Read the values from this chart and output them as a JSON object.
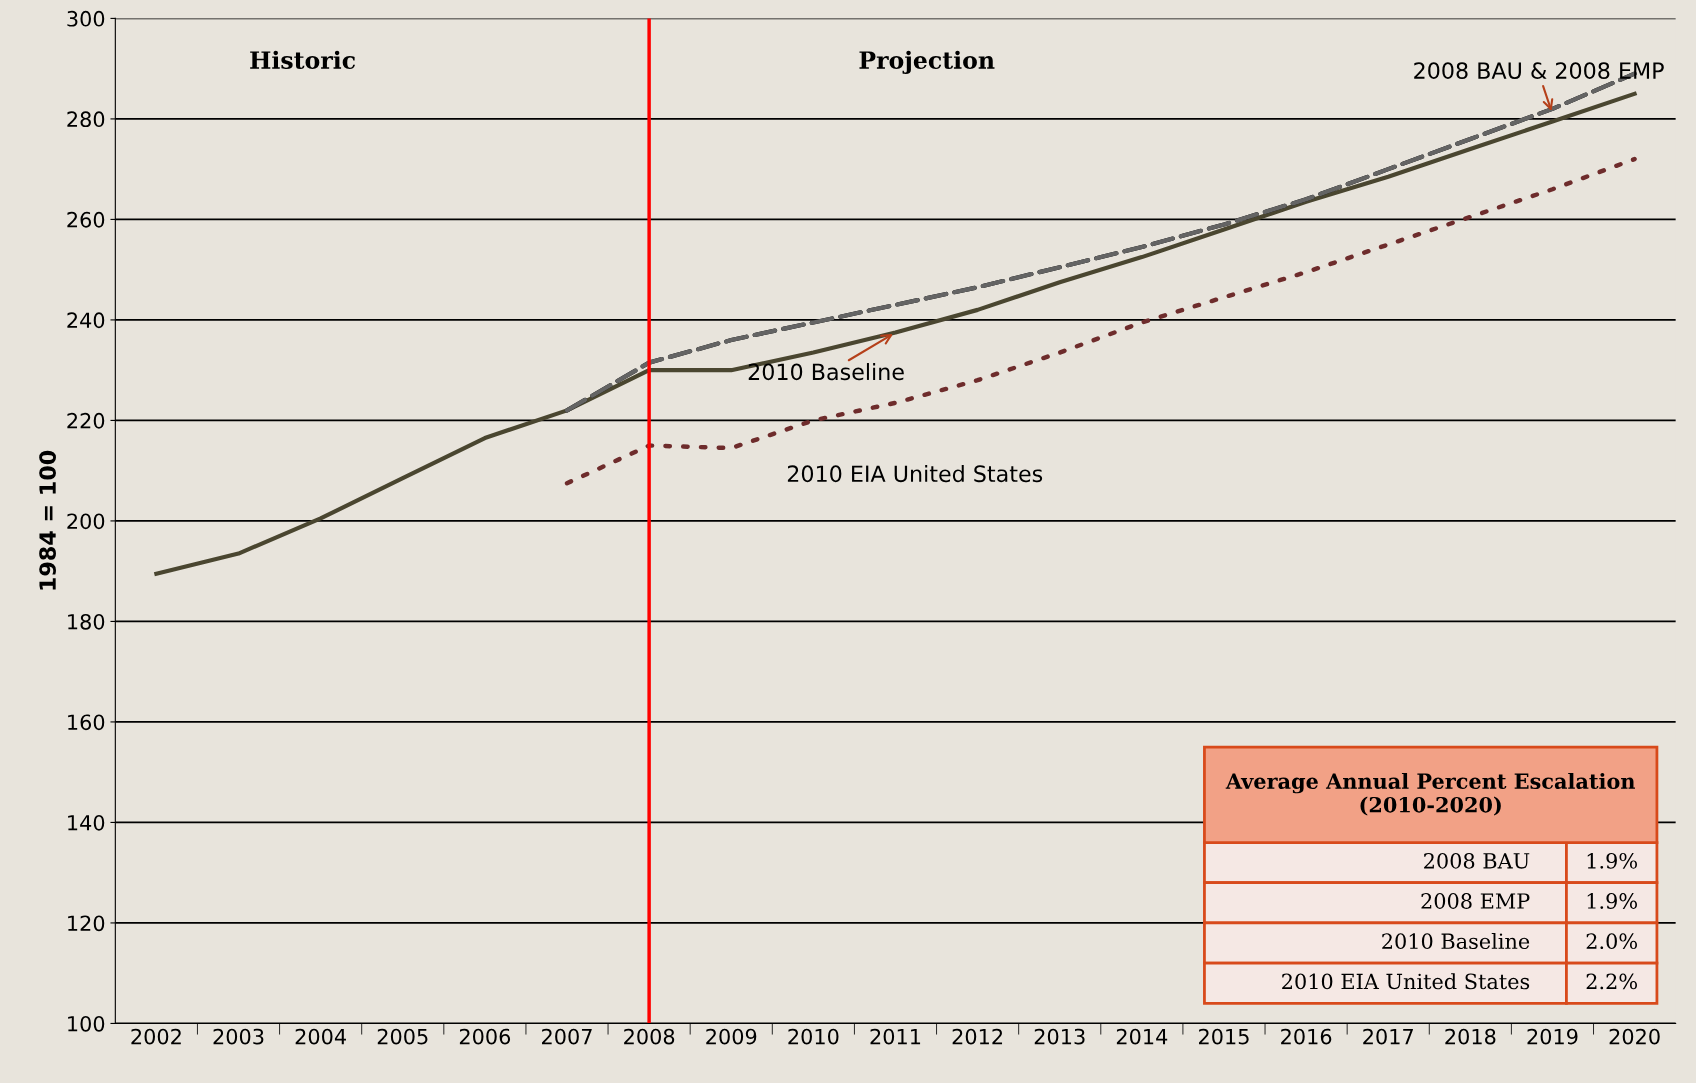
{
  "chart_data": {
    "type": "line",
    "ylabel": "1984 = 100",
    "categories": [
      "2002",
      "2003",
      "2004",
      "2005",
      "2006",
      "2007",
      "2008",
      "2009",
      "2010",
      "2011",
      "2012",
      "2013",
      "2014",
      "2015",
      "2016",
      "2017",
      "2018",
      "2019",
      "2020"
    ],
    "series": [
      {
        "color": "#4a4630",
        "line_style": "solid",
        "values": [
          189.5,
          193.5,
          200.5,
          208.5,
          216.5,
          222,
          230,
          230,
          233.5,
          237.5,
          242,
          247.5,
          252.5,
          258,
          263.5,
          268.5,
          274,
          279.5,
          285
        ]
      },
      {
        "color": "#000000",
        "line_style": "dashed",
        "values": [
          null,
          null,
          null,
          null,
          null,
          222,
          231.5,
          236,
          239.5,
          243,
          246.5,
          250.5,
          254.5,
          259,
          264,
          270,
          276,
          282,
          289
        ]
      },
      {
        "color": "#646464",
        "line_style": "dashed",
        "values": [
          null,
          null,
          null,
          null,
          null,
          222,
          231.5,
          236,
          239.5,
          243,
          246.5,
          250.5,
          254.5,
          259,
          264,
          270,
          276,
          282,
          289
        ]
      },
      {
        "color": "#6e2c2c",
        "line_style": "dotted",
        "values": [
          null,
          null,
          null,
          null,
          null,
          207.5,
          215,
          214.5,
          220,
          223.5,
          228,
          233.5,
          239.5,
          244.5,
          249.5,
          255,
          260.5,
          266,
          272
        ]
      }
    ],
    "ylim": [
      100,
      300
    ],
    "yticks": [
      100,
      120,
      140,
      160,
      180,
      200,
      220,
      240,
      260,
      280,
      300
    ],
    "grid": "y",
    "legend": false,
    "marker": "none",
    "ref_lines": [
      {
        "axis": "x",
        "value": "2008",
        "color": "#ff0000"
      }
    ],
    "annotations": [
      "Historic",
      "Projection",
      "Average Annual Percent Escalation (2010-2020)",
      "2008 BAU",
      "1.9%",
      "2008 EMP",
      "1.9%",
      "2010 Baseline",
      "2.0%",
      "2010 EIA United States",
      "2.2%",
      {
        "text": "2008 BAU & 2008 EMP",
        "x": "2019",
        "y": 281
      },
      {
        "text": "2010 Baseline",
        "x": "2011",
        "y": 237.5
      },
      "2010 EIA United States"
    ]
  }
}
